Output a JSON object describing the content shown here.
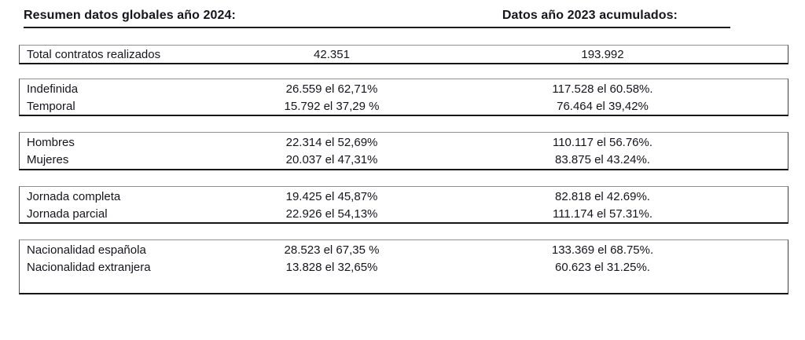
{
  "summary": {
    "header": {
      "left_title": "Resumen datos globales año 2024:",
      "right_title": "Datos año 2023 acumulados:"
    },
    "groups": [
      {
        "rows": [
          {
            "label": "Total contratos realizados",
            "value_2024": "42.351",
            "value_2023": "193.992"
          }
        ]
      },
      {
        "rows": [
          {
            "label": "Indefinida",
            "value_2024": "26.559 el 62,71%",
            "value_2023": "117.528 el 60.58%."
          },
          {
            "label": "Temporal",
            "value_2024": "15.792 el 37,29 %",
            "value_2023": "76.464 el 39,42%"
          }
        ]
      },
      {
        "rows": [
          {
            "label": "Hombres",
            "value_2024": "22.314 el 52,69%",
            "value_2023": "110.117 el 56.76%."
          },
          {
            "label": "Mujeres",
            "value_2024": "20.037 el 47,31%",
            "value_2023": "83.875 el 43.24%."
          }
        ]
      },
      {
        "rows": [
          {
            "label": "Jornada completa",
            "value_2024": "19.425 el 45,87%",
            "value_2023": "82.818 el 42.69%."
          },
          {
            "label": "Jornada parcial",
            "value_2024": "22.926 el 54,13%",
            "value_2023": "111.174 el 57.31%."
          }
        ]
      },
      {
        "rows": [
          {
            "label": "Nacionalidad española",
            "value_2024": "28.523 el 67,35 %",
            "value_2023": "133.369 el 68.75%."
          },
          {
            "label": "Nacionalidad extranjera",
            "value_2024": "13.828 el 32,65%",
            "value_2023": "60.623 el 31.25%."
          }
        ]
      }
    ],
    "colors": {
      "text": "#15151d",
      "border_dark": "#161616",
      "border_grey": "#8f8f8f"
    }
  }
}
